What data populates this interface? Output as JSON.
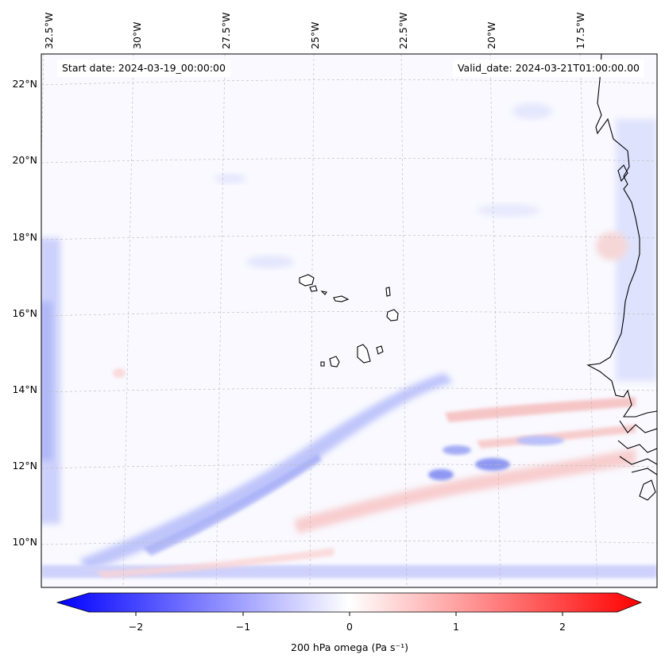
{
  "map": {
    "start_date": "Start date: 2024-03-19_00:00:00",
    "valid_date": "Valid_date: 2024-03-21T01:00:00.00",
    "lon_labels": [
      "32.5°W",
      "30°W",
      "27.5°W",
      "25°W",
      "22.5°W",
      "20°W",
      "17.5°W"
    ],
    "lat_labels": [
      "22°N",
      "20°N",
      "18°N",
      "16°N",
      "14°N",
      "12°N",
      "10°N"
    ],
    "variable": "200 hPa omega (Pa s⁻¹)"
  },
  "colorbar": {
    "ticks": [
      "−2",
      "−1",
      "0",
      "1",
      "2"
    ],
    "range": [
      -2.6,
      2.6
    ],
    "low_color": "#0000ff",
    "mid_color": "#ffffff",
    "high_color": "#ff0000"
  }
}
